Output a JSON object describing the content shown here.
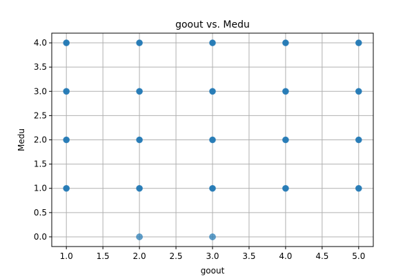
{
  "chart_data": {
    "type": "scatter",
    "title": "goout vs. Medu",
    "xlabel": "goout",
    "ylabel": "Medu",
    "xlim": [
      0.8,
      5.2
    ],
    "ylim": [
      -0.2,
      4.2
    ],
    "x_ticks": [
      1.0,
      1.5,
      2.0,
      2.5,
      3.0,
      3.5,
      4.0,
      4.5,
      5.0
    ],
    "x_tick_labels": [
      "1.0",
      "1.5",
      "2.0",
      "2.5",
      "3.0",
      "3.5",
      "4.0",
      "4.5",
      "5.0"
    ],
    "y_ticks": [
      0.0,
      0.5,
      1.0,
      1.5,
      2.0,
      2.5,
      3.0,
      3.5,
      4.0
    ],
    "y_tick_labels": [
      "0.0",
      "0.5",
      "1.0",
      "1.5",
      "2.0",
      "2.5",
      "3.0",
      "3.5",
      "4.0"
    ],
    "grid": true,
    "marker_color": "#1f77b4",
    "points": [
      {
        "x": 1,
        "y": 1
      },
      {
        "x": 1,
        "y": 2
      },
      {
        "x": 1,
        "y": 3
      },
      {
        "x": 1,
        "y": 4
      },
      {
        "x": 2,
        "y": 0
      },
      {
        "x": 2,
        "y": 1
      },
      {
        "x": 2,
        "y": 2
      },
      {
        "x": 2,
        "y": 3
      },
      {
        "x": 2,
        "y": 4
      },
      {
        "x": 3,
        "y": 0
      },
      {
        "x": 3,
        "y": 1
      },
      {
        "x": 3,
        "y": 2
      },
      {
        "x": 3,
        "y": 3
      },
      {
        "x": 3,
        "y": 4
      },
      {
        "x": 4,
        "y": 1
      },
      {
        "x": 4,
        "y": 2
      },
      {
        "x": 4,
        "y": 3
      },
      {
        "x": 4,
        "y": 4
      },
      {
        "x": 5,
        "y": 1
      },
      {
        "x": 5,
        "y": 2
      },
      {
        "x": 5,
        "y": 3
      },
      {
        "x": 5,
        "y": 4
      }
    ]
  }
}
